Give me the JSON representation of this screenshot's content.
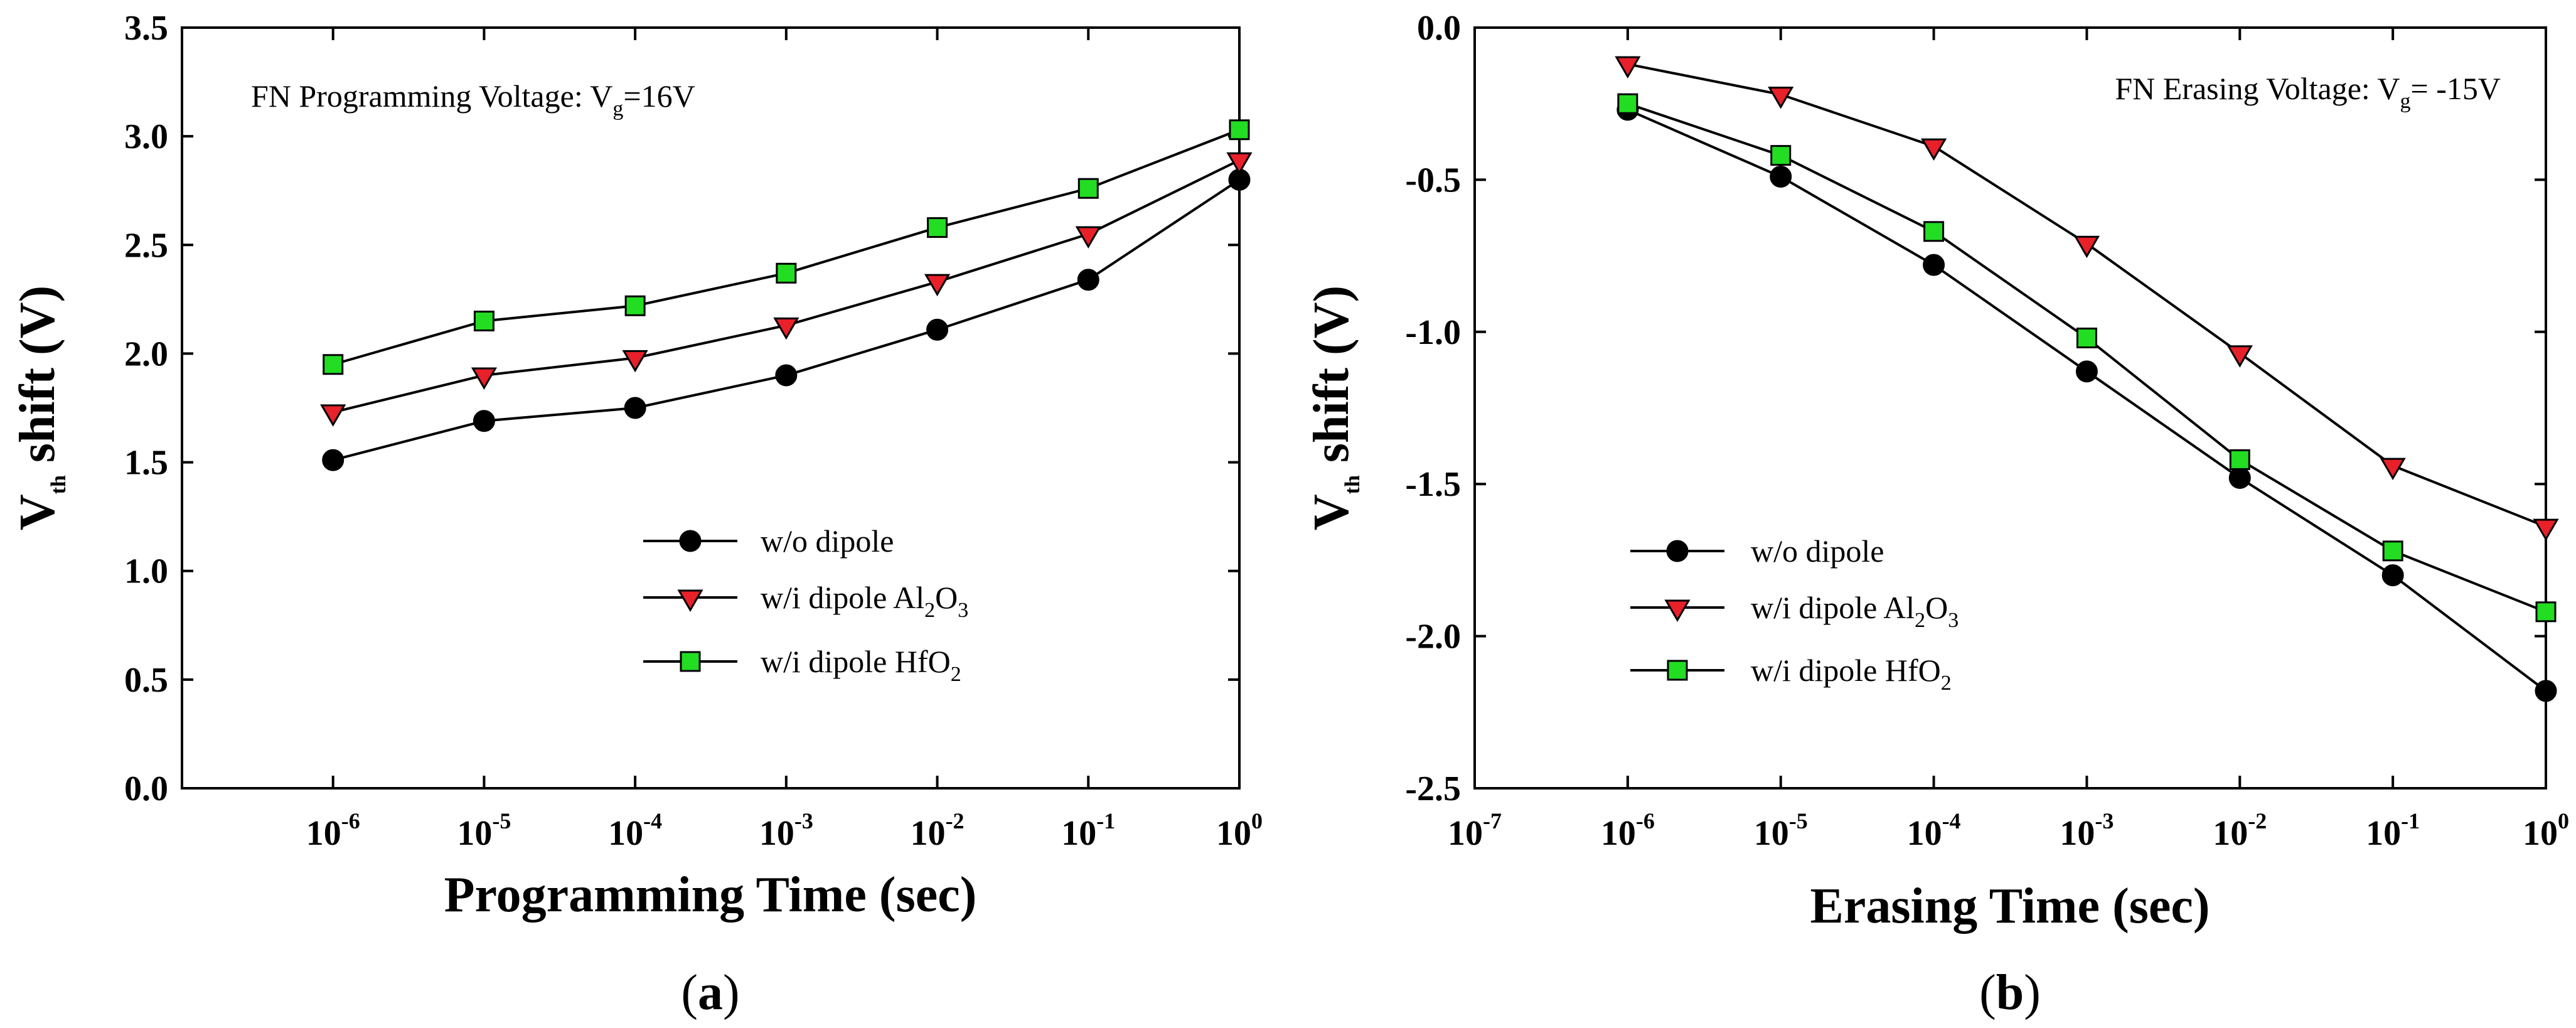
{
  "chart_data": [
    {
      "panel": "a",
      "type": "line",
      "panel_label": "a",
      "xlabel": "Programming Time (sec)",
      "ylabel_main": "V",
      "ylabel_sub": "th",
      "ylabel_rest": " shift (V)",
      "x_scale": "log",
      "xlim_exp": [
        -7,
        0
      ],
      "x_tick_exps": [
        -6,
        -5,
        -4,
        -3,
        -2,
        -1,
        0
      ],
      "ylim": [
        0,
        3.5
      ],
      "y_ticks": [
        "0.0",
        "0.5",
        "1.0",
        "1.5",
        "2.0",
        "2.5",
        "3.0",
        "3.5"
      ],
      "annotation": {
        "prefix": "FN Programming Voltage: V",
        "sub": "g",
        "suffix": "=16V"
      },
      "legend_position": "center-right",
      "series": [
        {
          "name": "w/o dipole",
          "label_parts": [
            "w/o dipole"
          ],
          "marker": "circle",
          "color": "#000000",
          "x_exp": [
            -6,
            -5,
            -4,
            -3,
            -2,
            -1,
            0
          ],
          "values": [
            1.51,
            1.69,
            1.75,
            1.9,
            2.11,
            2.34,
            2.8
          ]
        },
        {
          "name": "w/i dipole Al2O3",
          "label_parts": [
            "w/i dipole Al",
            "2",
            "O",
            "3"
          ],
          "marker": "triangle-down",
          "color": "#e8202a",
          "x_exp": [
            -6,
            -5,
            -4,
            -3,
            -2,
            -1,
            0
          ],
          "values": [
            1.73,
            1.9,
            1.98,
            2.13,
            2.33,
            2.55,
            2.89
          ]
        },
        {
          "name": "w/i dipole HfO2",
          "label_parts": [
            "w/i dipole HfO",
            "2"
          ],
          "marker": "square",
          "color": "#22dd22",
          "x_exp": [
            -6,
            -5,
            -4,
            -3,
            -2,
            -1,
            0
          ],
          "values": [
            1.95,
            2.15,
            2.22,
            2.37,
            2.58,
            2.76,
            3.03
          ]
        }
      ]
    },
    {
      "panel": "b",
      "type": "line",
      "panel_label": "b",
      "xlabel": "Erasing Time (sec)",
      "ylabel_main": "V",
      "ylabel_sub": "th",
      "ylabel_rest": " shift (V)",
      "x_scale": "log",
      "xlim_exp": [
        -7,
        0
      ],
      "x_tick_exps": [
        -7,
        -6,
        -5,
        -4,
        -3,
        -2,
        -1,
        0
      ],
      "ylim": [
        -2.5,
        0
      ],
      "y_ticks": [
        "-2.5",
        "-2.0",
        "-1.5",
        "-1.0",
        "-0.5",
        "0.0"
      ],
      "annotation": {
        "prefix": "FN Erasing Voltage: V",
        "sub": "g",
        "suffix": "= -15V"
      },
      "legend_position": "lower-left",
      "series": [
        {
          "name": "w/o dipole",
          "label_parts": [
            "w/o dipole"
          ],
          "marker": "circle",
          "color": "#000000",
          "x_exp": [
            -6,
            -5,
            -4,
            -3,
            -2,
            -1,
            0
          ],
          "values": [
            -0.27,
            -0.49,
            -0.78,
            -1.13,
            -1.48,
            -1.8,
            -2.18
          ]
        },
        {
          "name": "w/i dipole Al2O3",
          "label_parts": [
            "w/i dipole Al",
            "2",
            "O",
            "3"
          ],
          "marker": "triangle-down",
          "color": "#e8202a",
          "x_exp": [
            -6,
            -5,
            -4,
            -3,
            -2,
            -1,
            0
          ],
          "values": [
            -0.12,
            -0.22,
            -0.39,
            -0.71,
            -1.07,
            -1.44,
            -1.64
          ]
        },
        {
          "name": "w/i dipole HfO2",
          "label_parts": [
            "w/i dipole HfO",
            "2"
          ],
          "marker": "square",
          "color": "#22dd22",
          "x_exp": [
            -6,
            -5,
            -4,
            -3,
            -2,
            -1,
            0
          ],
          "values": [
            -0.25,
            -0.42,
            -0.67,
            -1.02,
            -1.42,
            -1.72,
            -1.92
          ]
        }
      ]
    }
  ]
}
